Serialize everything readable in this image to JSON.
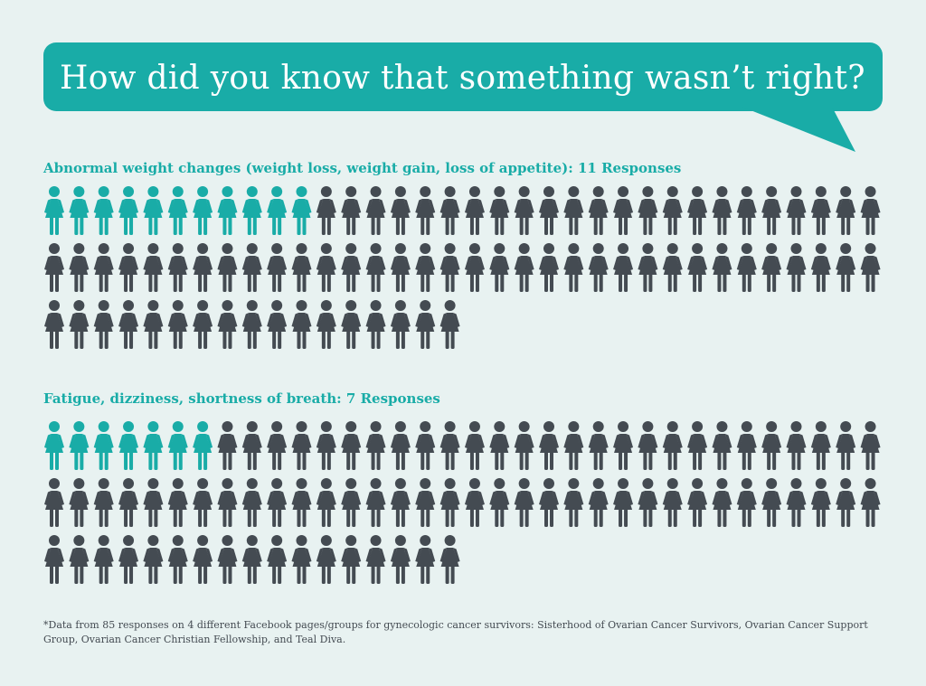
{
  "title": "How did you know that something wasn’t right?",
  "colors": {
    "highlight": "#19aca7",
    "base": "#444b52",
    "background": "#e8f2f1"
  },
  "icon": "woman-figure-icon",
  "chart_data": [
    {
      "type": "table",
      "title": "Abnormal weight changes (weight loss, weight gain, loss of appetite): 11 Responses",
      "highlighted": 11,
      "total": 85
    },
    {
      "type": "table",
      "title": "Fatigue, dizziness, shortness of breath: 7 Responses",
      "highlighted": 7,
      "total": 85
    }
  ],
  "footnote": "*Data from 85 responses on 4 different Facebook pages/groups for gynecologic cancer survivors: Sisterhood of Ovarian Cancer Survivors, Ovarian Cancer Support Group, Ovarian Cancer Christian Fellowship, and Teal Diva."
}
